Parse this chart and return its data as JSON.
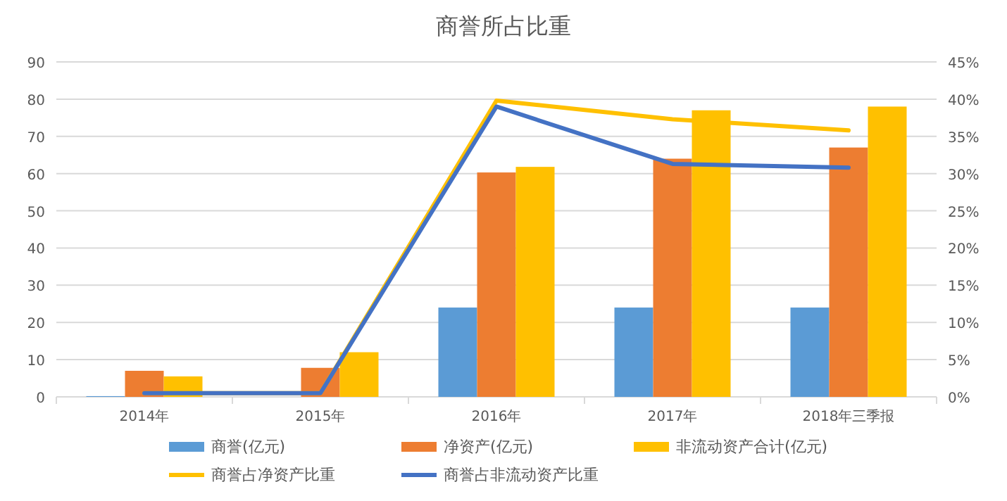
{
  "chart_data": {
    "type": "bar",
    "title": "商誉所占比重",
    "categories": [
      "2014年",
      "2015年",
      "2016年",
      "2017年",
      "2018年三季报"
    ],
    "series": [
      {
        "name": "商誉(亿元)",
        "color": "#5b9bd5",
        "values": [
          0.2,
          0,
          24,
          24,
          24
        ]
      },
      {
        "name": "净资产(亿元)",
        "color": "#ed7d31",
        "values": [
          7,
          7.8,
          60.3,
          64,
          67
        ]
      },
      {
        "name": "非流动资产合计(亿元)",
        "color": "#ffc000",
        "values": [
          5.5,
          12,
          61.8,
          77,
          78
        ]
      },
      {
        "name": "商誉占净资产比重",
        "type": "line",
        "axis": "y2",
        "color": "#ffc000",
        "values": [
          0.5,
          0.5,
          39.8,
          37.3,
          35.8
        ]
      },
      {
        "name": "商誉占非流动资产比重",
        "type": "line",
        "axis": "y2",
        "color": "#4472c4",
        "values": [
          0.5,
          0.5,
          39,
          31.3,
          30.8
        ]
      }
    ],
    "ylim": [
      0,
      90
    ],
    "yticks": [
      0,
      10,
      20,
      30,
      40,
      50,
      60,
      70,
      80,
      90
    ],
    "y2lim": [
      0,
      45
    ],
    "y2ticks": [
      {
        "value": 0,
        "label": "0%"
      },
      {
        "value": 5,
        "label": "5%"
      },
      {
        "value": 10,
        "label": "10%"
      },
      {
        "value": 15,
        "label": "15%"
      },
      {
        "value": 20,
        "label": "20%"
      },
      {
        "value": 25,
        "label": "25%"
      },
      {
        "value": 30,
        "label": "30%"
      },
      {
        "value": 35,
        "label": "35%"
      },
      {
        "value": 40,
        "label": "40%"
      },
      {
        "value": 45,
        "label": "45%"
      }
    ],
    "grid": "y",
    "legend": "bottom"
  }
}
